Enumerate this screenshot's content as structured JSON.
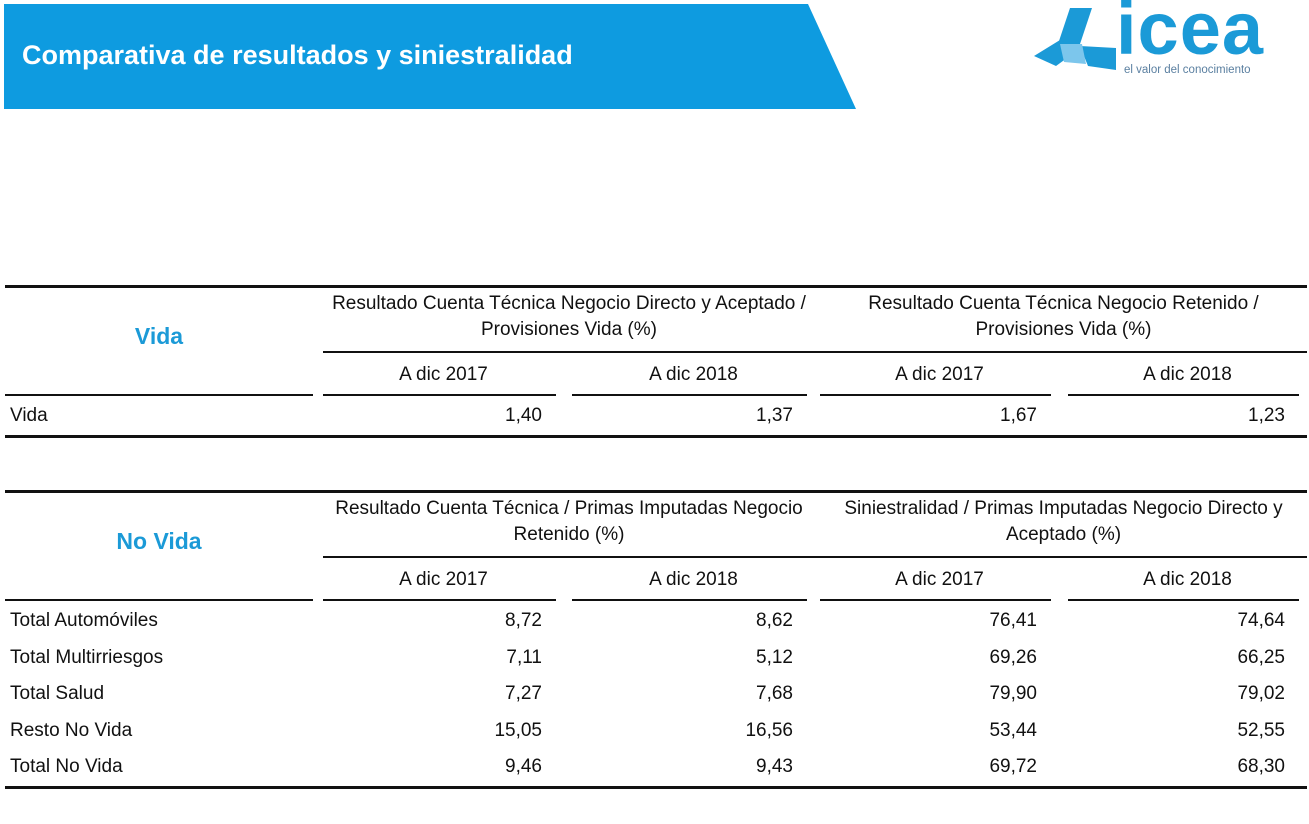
{
  "header": {
    "title": "Comparativa de resultados y siniestralidad"
  },
  "logo": {
    "name": "icea",
    "tagline": "el valor del conocimiento"
  },
  "tables": [
    {
      "section": "Vida",
      "groups": [
        {
          "title": "Resultado Cuenta Técnica Negocio Directo y Aceptado / Provisiones Vida (%)",
          "columns": [
            "A dic 2017",
            "A dic 2018"
          ]
        },
        {
          "title": "Resultado Cuenta Técnica Negocio Retenido / Provisiones Vida (%)",
          "columns": [
            "A dic 2017",
            "A dic 2018"
          ]
        }
      ],
      "rows": [
        {
          "label": "Vida",
          "values": [
            "1,40",
            "1,37",
            "1,67",
            "1,23"
          ]
        }
      ]
    },
    {
      "section": "No Vida",
      "groups": [
        {
          "title": "Resultado Cuenta Técnica / Primas Imputadas Negocio Retenido (%)",
          "columns": [
            "A dic 2017",
            "A dic 2018"
          ]
        },
        {
          "title": "Siniestralidad / Primas Imputadas Negocio Directo y Aceptado (%)",
          "columns": [
            "A dic 2017",
            "A dic 2018"
          ]
        }
      ],
      "rows": [
        {
          "label": "Total Automóviles",
          "values": [
            "8,72",
            "8,62",
            "76,41",
            "74,64"
          ]
        },
        {
          "label": "Total Multirriesgos",
          "values": [
            "7,11",
            "5,12",
            "69,26",
            "66,25"
          ]
        },
        {
          "label": "Total Salud",
          "values": [
            "7,27",
            "7,68",
            "79,90",
            "79,02"
          ]
        },
        {
          "label": "Resto No Vida",
          "values": [
            "15,05",
            "16,56",
            "53,44",
            "52,55"
          ]
        },
        {
          "label": "Total No Vida",
          "values": [
            "9,46",
            "9,43",
            "69,72",
            "68,30"
          ]
        }
      ]
    }
  ]
}
